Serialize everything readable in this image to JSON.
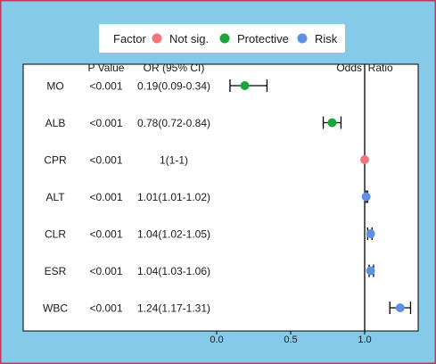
{
  "chart_data": {
    "type": "forest",
    "legend": {
      "title": "Factor",
      "position": "top",
      "entries": [
        {
          "label": "Not sig.",
          "color": "#f0767a"
        },
        {
          "label": "Protective",
          "color": "#1aa63a"
        },
        {
          "label": "Risk",
          "color": "#5d8fe3"
        }
      ]
    },
    "columns": {
      "pvalue_header": "P Value",
      "or_header": "OR (95% CI)",
      "plot_header": "Odds  Ratio"
    },
    "rows": [
      {
        "name": "MO",
        "p": "<0.001",
        "or_text": "0.19(0.09-0.34)",
        "or": 0.19,
        "lo": 0.09,
        "hi": 0.34,
        "factor": "Protective"
      },
      {
        "name": "ALB",
        "p": "<0.001",
        "or_text": "0.78(0.72-0.84)",
        "or": 0.78,
        "lo": 0.72,
        "hi": 0.84,
        "factor": "Protective"
      },
      {
        "name": "CPR",
        "p": "<0.001",
        "or_text": "1(1-1)",
        "or": 1.0,
        "lo": 1.0,
        "hi": 1.0,
        "factor": "Not sig."
      },
      {
        "name": "ALT",
        "p": "<0.001",
        "or_text": "1.01(1.01-1.02)",
        "or": 1.01,
        "lo": 1.01,
        "hi": 1.02,
        "factor": "Risk"
      },
      {
        "name": "CLR",
        "p": "<0.001",
        "or_text": "1.04(1.02-1.05)",
        "or": 1.04,
        "lo": 1.02,
        "hi": 1.05,
        "factor": "Risk"
      },
      {
        "name": "ESR",
        "p": "<0.001",
        "or_text": "1.04(1.03-1.06)",
        "or": 1.04,
        "lo": 1.03,
        "hi": 1.06,
        "factor": "Risk"
      },
      {
        "name": "WBC",
        "p": "<0.001",
        "or_text": "1.24(1.17-1.31)",
        "or": 1.24,
        "lo": 1.17,
        "hi": 1.31,
        "factor": "Risk"
      }
    ],
    "x_ticks": [
      "0.0",
      "0.5",
      "1.0"
    ],
    "x_tick_values": [
      0.0,
      0.5,
      1.0
    ],
    "xlim": [
      0.0,
      1.3
    ],
    "reference_line": 1.0,
    "colors": {
      "frame_background": "#86cae9",
      "panel_background": "#ffffff",
      "border": "#c03a5e",
      "line": "#000000"
    }
  }
}
